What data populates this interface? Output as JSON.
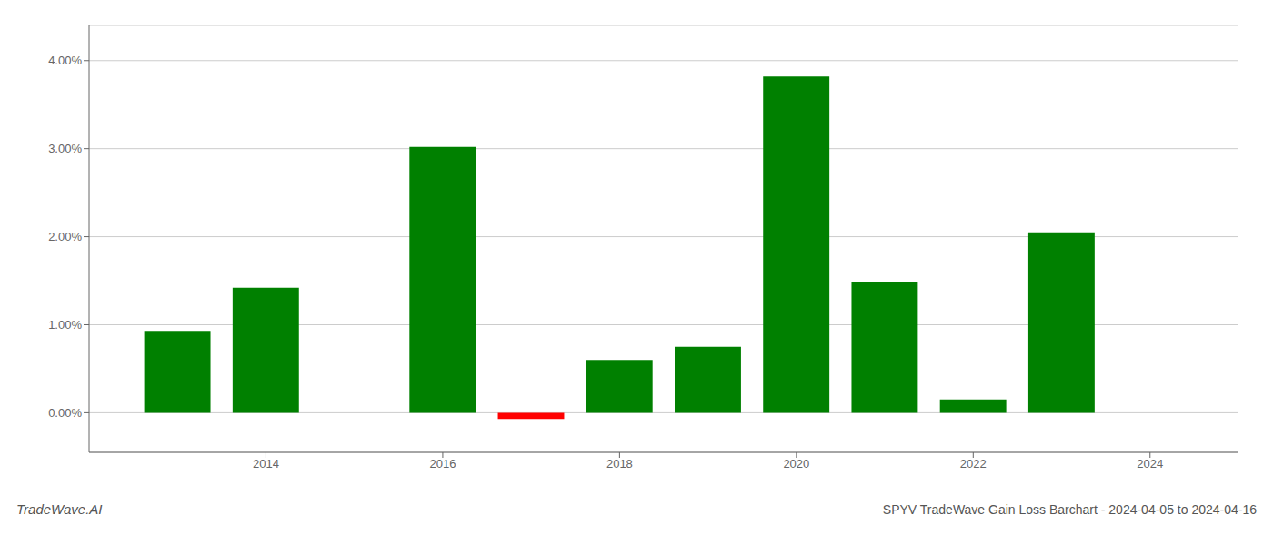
{
  "chart_data": {
    "type": "bar",
    "title": "SPYV TradeWave Gain Loss Barchart - 2024-04-05 to 2024-04-16",
    "annotations": [
      "TradeWave.AI"
    ],
    "x": [
      2013,
      2014,
      2016,
      2017,
      2018,
      2019,
      2020,
      2021,
      2022,
      2023
    ],
    "values": [
      0.0093,
      0.0142,
      0.0302,
      -0.0007,
      0.006,
      0.0075,
      0.0382,
      0.0148,
      0.0015,
      0.0205
    ],
    "colors": [
      "#008000",
      "#008000",
      "#008000",
      "#ff0000",
      "#008000",
      "#008000",
      "#008000",
      "#008000",
      "#008000",
      "#008000"
    ],
    "xlim": [
      2012.0,
      2025.0
    ],
    "ylim": [
      -0.0045,
      0.044
    ],
    "xticks": [
      2014,
      2016,
      2018,
      2020,
      2022,
      2024
    ],
    "yticks": [
      {
        "value": 0.0,
        "label": "0.00%"
      },
      {
        "value": 0.01,
        "label": "1.00%"
      },
      {
        "value": 0.02,
        "label": "2.00%"
      },
      {
        "value": 0.03,
        "label": "3.00%"
      },
      {
        "value": 0.04,
        "label": "4.00%"
      }
    ],
    "grid": "y"
  }
}
